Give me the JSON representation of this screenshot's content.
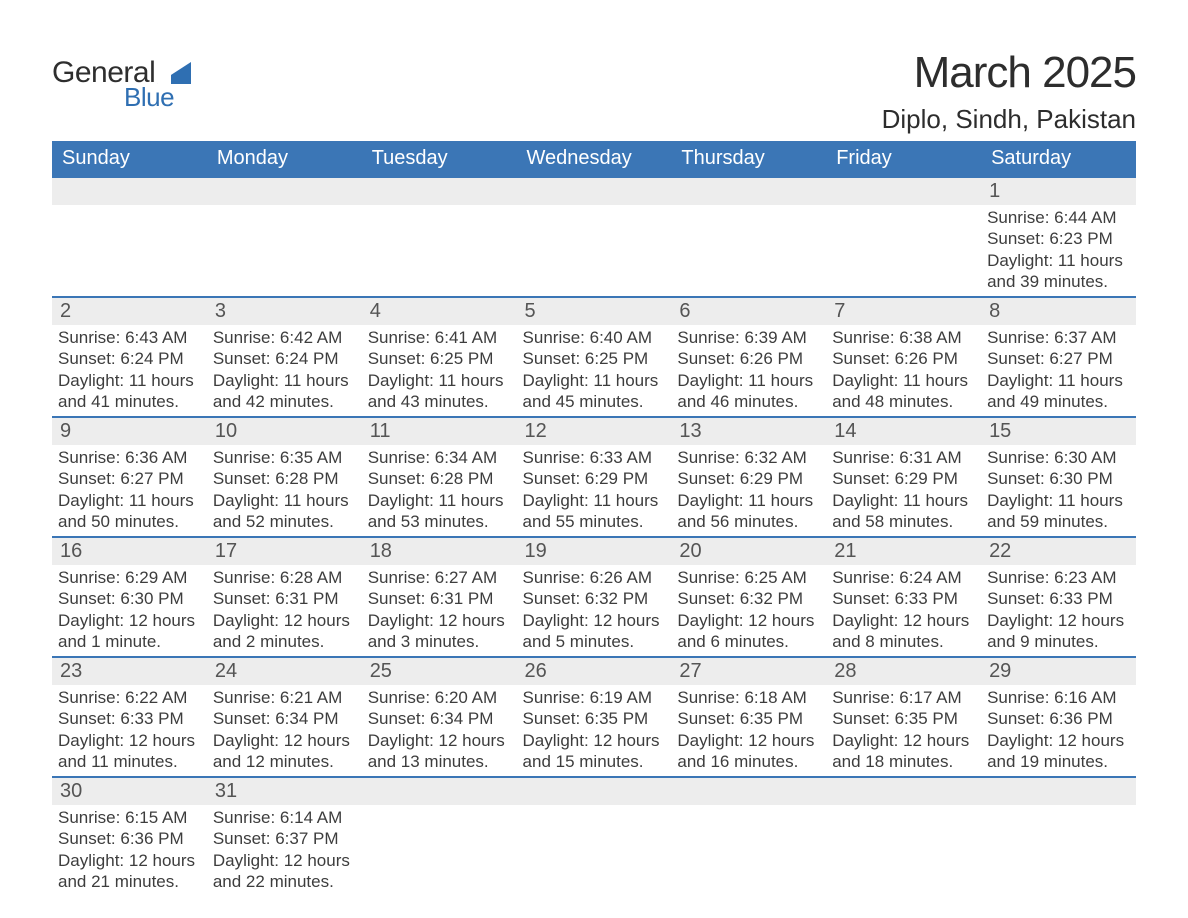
{
  "logo": {
    "top": "General",
    "bottom": "Blue",
    "accent_color": "#2f6fb2",
    "text_color": "#2e2e2e"
  },
  "title": "March 2025",
  "subtitle": "Diplo, Sindh, Pakistan",
  "header_bg": "#3b76b6",
  "header_fg": "#ffffff",
  "daynum_bg": "#ededed",
  "row_divider_color": "#3b76b6",
  "weekdays": [
    "Sunday",
    "Monday",
    "Tuesday",
    "Wednesday",
    "Thursday",
    "Friday",
    "Saturday"
  ],
  "weeks": [
    [
      null,
      null,
      null,
      null,
      null,
      null,
      {
        "n": "1",
        "sr": "Sunrise: 6:44 AM",
        "ss": "Sunset: 6:23 PM",
        "d1": "Daylight: 11 hours",
        "d2": "and 39 minutes."
      }
    ],
    [
      {
        "n": "2",
        "sr": "Sunrise: 6:43 AM",
        "ss": "Sunset: 6:24 PM",
        "d1": "Daylight: 11 hours",
        "d2": "and 41 minutes."
      },
      {
        "n": "3",
        "sr": "Sunrise: 6:42 AM",
        "ss": "Sunset: 6:24 PM",
        "d1": "Daylight: 11 hours",
        "d2": "and 42 minutes."
      },
      {
        "n": "4",
        "sr": "Sunrise: 6:41 AM",
        "ss": "Sunset: 6:25 PM",
        "d1": "Daylight: 11 hours",
        "d2": "and 43 minutes."
      },
      {
        "n": "5",
        "sr": "Sunrise: 6:40 AM",
        "ss": "Sunset: 6:25 PM",
        "d1": "Daylight: 11 hours",
        "d2": "and 45 minutes."
      },
      {
        "n": "6",
        "sr": "Sunrise: 6:39 AM",
        "ss": "Sunset: 6:26 PM",
        "d1": "Daylight: 11 hours",
        "d2": "and 46 minutes."
      },
      {
        "n": "7",
        "sr": "Sunrise: 6:38 AM",
        "ss": "Sunset: 6:26 PM",
        "d1": "Daylight: 11 hours",
        "d2": "and 48 minutes."
      },
      {
        "n": "8",
        "sr": "Sunrise: 6:37 AM",
        "ss": "Sunset: 6:27 PM",
        "d1": "Daylight: 11 hours",
        "d2": "and 49 minutes."
      }
    ],
    [
      {
        "n": "9",
        "sr": "Sunrise: 6:36 AM",
        "ss": "Sunset: 6:27 PM",
        "d1": "Daylight: 11 hours",
        "d2": "and 50 minutes."
      },
      {
        "n": "10",
        "sr": "Sunrise: 6:35 AM",
        "ss": "Sunset: 6:28 PM",
        "d1": "Daylight: 11 hours",
        "d2": "and 52 minutes."
      },
      {
        "n": "11",
        "sr": "Sunrise: 6:34 AM",
        "ss": "Sunset: 6:28 PM",
        "d1": "Daylight: 11 hours",
        "d2": "and 53 minutes."
      },
      {
        "n": "12",
        "sr": "Sunrise: 6:33 AM",
        "ss": "Sunset: 6:29 PM",
        "d1": "Daylight: 11 hours",
        "d2": "and 55 minutes."
      },
      {
        "n": "13",
        "sr": "Sunrise: 6:32 AM",
        "ss": "Sunset: 6:29 PM",
        "d1": "Daylight: 11 hours",
        "d2": "and 56 minutes."
      },
      {
        "n": "14",
        "sr": "Sunrise: 6:31 AM",
        "ss": "Sunset: 6:29 PM",
        "d1": "Daylight: 11 hours",
        "d2": "and 58 minutes."
      },
      {
        "n": "15",
        "sr": "Sunrise: 6:30 AM",
        "ss": "Sunset: 6:30 PM",
        "d1": "Daylight: 11 hours",
        "d2": "and 59 minutes."
      }
    ],
    [
      {
        "n": "16",
        "sr": "Sunrise: 6:29 AM",
        "ss": "Sunset: 6:30 PM",
        "d1": "Daylight: 12 hours",
        "d2": "and 1 minute."
      },
      {
        "n": "17",
        "sr": "Sunrise: 6:28 AM",
        "ss": "Sunset: 6:31 PM",
        "d1": "Daylight: 12 hours",
        "d2": "and 2 minutes."
      },
      {
        "n": "18",
        "sr": "Sunrise: 6:27 AM",
        "ss": "Sunset: 6:31 PM",
        "d1": "Daylight: 12 hours",
        "d2": "and 3 minutes."
      },
      {
        "n": "19",
        "sr": "Sunrise: 6:26 AM",
        "ss": "Sunset: 6:32 PM",
        "d1": "Daylight: 12 hours",
        "d2": "and 5 minutes."
      },
      {
        "n": "20",
        "sr": "Sunrise: 6:25 AM",
        "ss": "Sunset: 6:32 PM",
        "d1": "Daylight: 12 hours",
        "d2": "and 6 minutes."
      },
      {
        "n": "21",
        "sr": "Sunrise: 6:24 AM",
        "ss": "Sunset: 6:33 PM",
        "d1": "Daylight: 12 hours",
        "d2": "and 8 minutes."
      },
      {
        "n": "22",
        "sr": "Sunrise: 6:23 AM",
        "ss": "Sunset: 6:33 PM",
        "d1": "Daylight: 12 hours",
        "d2": "and 9 minutes."
      }
    ],
    [
      {
        "n": "23",
        "sr": "Sunrise: 6:22 AM",
        "ss": "Sunset: 6:33 PM",
        "d1": "Daylight: 12 hours",
        "d2": "and 11 minutes."
      },
      {
        "n": "24",
        "sr": "Sunrise: 6:21 AM",
        "ss": "Sunset: 6:34 PM",
        "d1": "Daylight: 12 hours",
        "d2": "and 12 minutes."
      },
      {
        "n": "25",
        "sr": "Sunrise: 6:20 AM",
        "ss": "Sunset: 6:34 PM",
        "d1": "Daylight: 12 hours",
        "d2": "and 13 minutes."
      },
      {
        "n": "26",
        "sr": "Sunrise: 6:19 AM",
        "ss": "Sunset: 6:35 PM",
        "d1": "Daylight: 12 hours",
        "d2": "and 15 minutes."
      },
      {
        "n": "27",
        "sr": "Sunrise: 6:18 AM",
        "ss": "Sunset: 6:35 PM",
        "d1": "Daylight: 12 hours",
        "d2": "and 16 minutes."
      },
      {
        "n": "28",
        "sr": "Sunrise: 6:17 AM",
        "ss": "Sunset: 6:35 PM",
        "d1": "Daylight: 12 hours",
        "d2": "and 18 minutes."
      },
      {
        "n": "29",
        "sr": "Sunrise: 6:16 AM",
        "ss": "Sunset: 6:36 PM",
        "d1": "Daylight: 12 hours",
        "d2": "and 19 minutes."
      }
    ],
    [
      {
        "n": "30",
        "sr": "Sunrise: 6:15 AM",
        "ss": "Sunset: 6:36 PM",
        "d1": "Daylight: 12 hours",
        "d2": "and 21 minutes."
      },
      {
        "n": "31",
        "sr": "Sunrise: 6:14 AM",
        "ss": "Sunset: 6:37 PM",
        "d1": "Daylight: 12 hours",
        "d2": "and 22 minutes."
      },
      null,
      null,
      null,
      null,
      null
    ]
  ]
}
